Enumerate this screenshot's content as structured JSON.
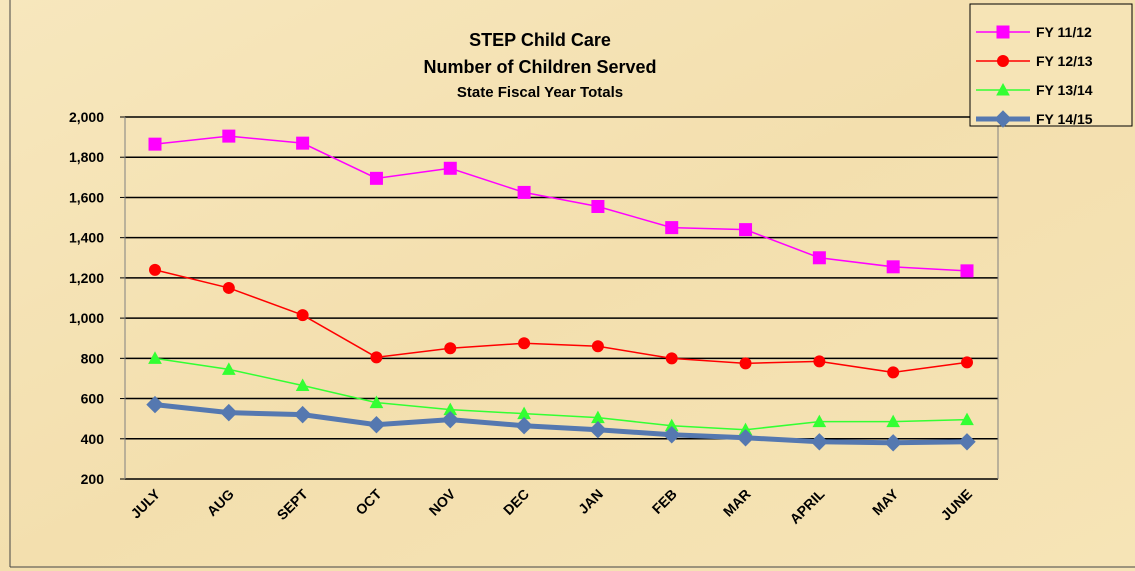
{
  "chart_data": {
    "type": "line",
    "title_lines": [
      "STEP Child Care",
      "Number of Children Served",
      "State Fiscal Year Totals"
    ],
    "categories": [
      "JULY",
      "AUG",
      "SEPT",
      "OCT",
      "NOV",
      "DEC",
      "JAN",
      "FEB",
      "MAR",
      "APRIL",
      "MAY",
      "JUNE"
    ],
    "series": [
      {
        "name": "FY 11/12",
        "color": "#ff00ff",
        "marker": "square",
        "width": 1.5,
        "values": [
          1865,
          1905,
          1870,
          1695,
          1745,
          1625,
          1555,
          1450,
          1440,
          1300,
          1255,
          1235
        ]
      },
      {
        "name": "FY 12/13",
        "color": "#ff0000",
        "marker": "circle",
        "width": 1.5,
        "values": [
          1240,
          1150,
          1015,
          805,
          850,
          875,
          860,
          800,
          775,
          785,
          730,
          780
        ]
      },
      {
        "name": "FY 13/14",
        "color": "#33ff33",
        "marker": "triangle",
        "width": 1.5,
        "values": [
          800,
          745,
          665,
          580,
          545,
          525,
          505,
          465,
          445,
          485,
          485,
          495
        ]
      },
      {
        "name": "FY 14/15",
        "color": "#5578b0",
        "marker": "diamond",
        "width": 5,
        "values": [
          570,
          530,
          520,
          470,
          495,
          465,
          445,
          420,
          405,
          385,
          380,
          385
        ]
      }
    ],
    "ylim": [
      200,
      2000
    ],
    "yticks": [
      200,
      400,
      600,
      800,
      {
        "value": 1000,
        "label": "1,000"
      },
      {
        "value": 1200,
        "label": "1,200"
      },
      {
        "value": 1400,
        "label": "1,400"
      },
      {
        "value": 1600,
        "label": "1,600"
      },
      {
        "value": 1800,
        "label": "1,800"
      },
      {
        "value": 2000,
        "label": "2,000"
      }
    ],
    "grid": true,
    "legend": "top-right"
  }
}
